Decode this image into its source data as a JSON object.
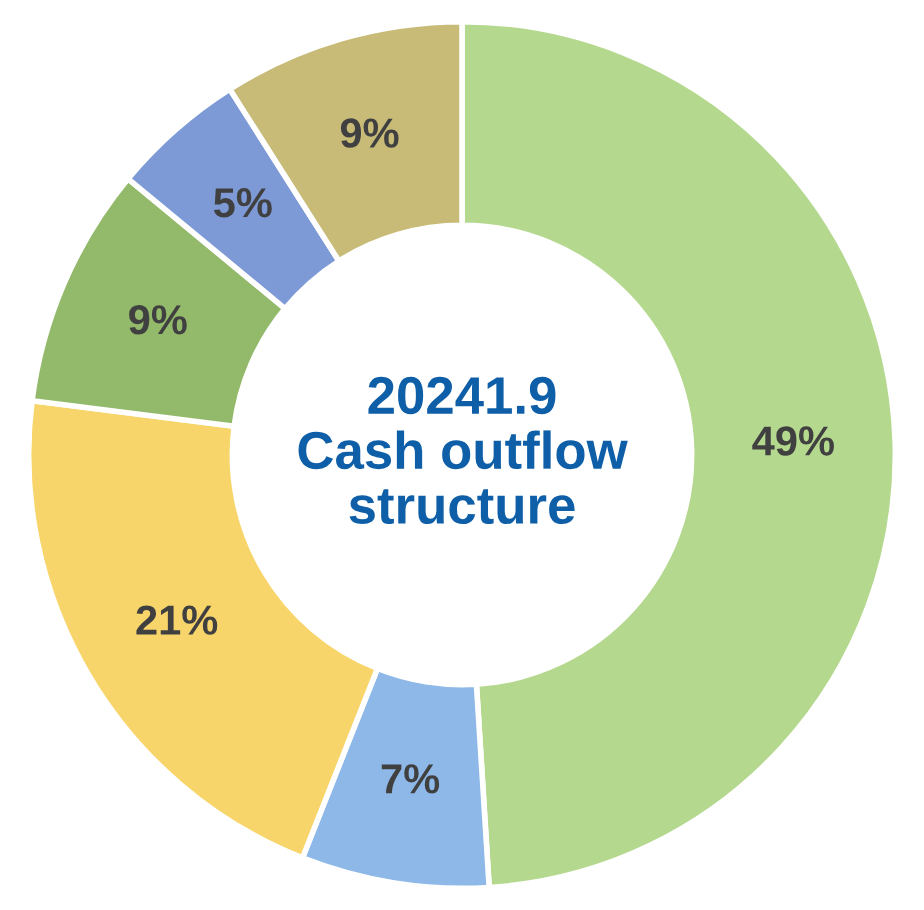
{
  "chart_data": {
    "type": "donut",
    "title": "20241.9\nCash outflow\nstructure",
    "categories": [
      null,
      null,
      null,
      null,
      null,
      null
    ],
    "values": [
      49,
      7,
      21,
      9,
      5,
      9
    ],
    "colors": [
      "#b5d88f",
      "#8db8e8",
      "#f7d56a",
      "#93b96a",
      "#7d9ad6",
      "#c8bb78"
    ],
    "value_labels": [
      "49%",
      "7%",
      "21%",
      "9%",
      "5%",
      "9%"
    ],
    "legend": false
  }
}
